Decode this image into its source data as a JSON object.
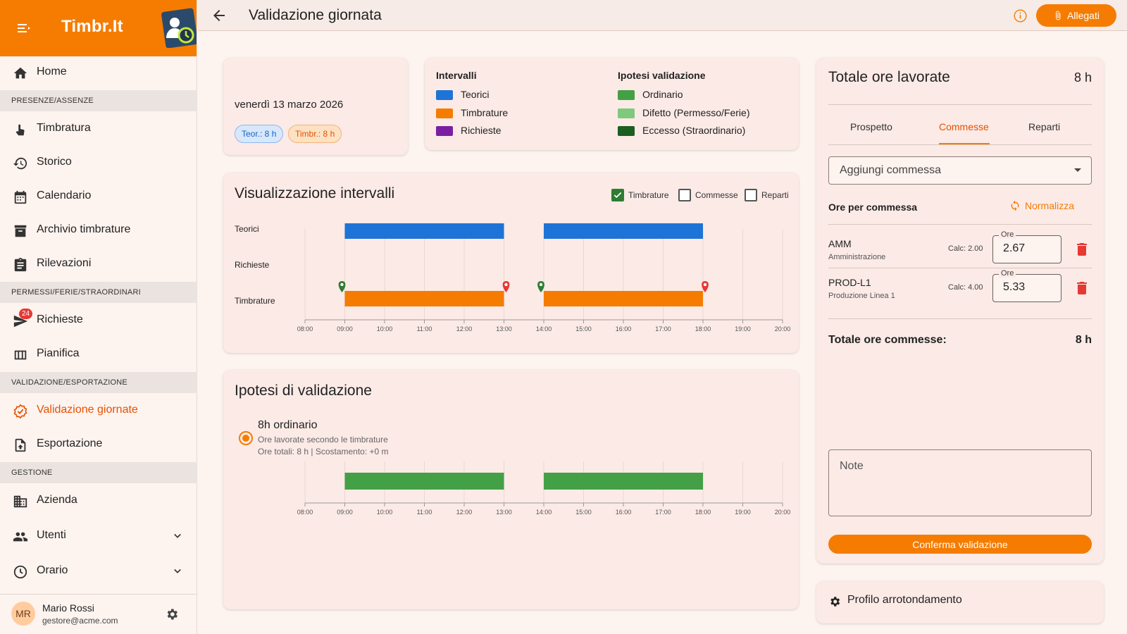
{
  "app": {
    "name": "Timbr.It"
  },
  "sidebar": {
    "home": "Home",
    "sections": [
      "PRESENZE/ASSENZE",
      "PERMESSI/FERIE/STRAORDINARI",
      "VALIDAZIONE/ESPORTAZIONE",
      "GESTIONE"
    ],
    "items": {
      "timbratura": "Timbratura",
      "storico": "Storico",
      "calendario": "Calendario",
      "archivio": "Archivio timbrature",
      "rilevazioni": "Rilevazioni",
      "richieste": "Richieste",
      "richieste_badge": "24",
      "pianifica": "Pianifica",
      "validazione": "Validazione giornate",
      "esportazione": "Esportazione",
      "azienda": "Azienda",
      "utenti": "Utenti",
      "orario": "Orario"
    },
    "user": {
      "initials": "MR",
      "name": "Mario Rossi",
      "email": "gestore@acme.com"
    }
  },
  "topbar": {
    "title": "Validazione giornata",
    "allegati_label": "Allegati"
  },
  "date_card": {
    "date": "venerdì 13 marzo 2026",
    "chip_teorici": "Teor.: 8 h",
    "chip_timbrature": "Timbr.: 8 h"
  },
  "legend": {
    "intervalli_title": "Intervalli",
    "intervalli": [
      {
        "label": "Teorici",
        "color": "#1e74d6"
      },
      {
        "label": "Timbrature",
        "color": "#f57c00"
      },
      {
        "label": "Richieste",
        "color": "#7b1fa2"
      }
    ],
    "ipotesi_title": "Ipotesi validazione",
    "ipotesi": [
      {
        "label": "Ordinario",
        "color": "#43a047"
      },
      {
        "label": "Difetto (Permesso/Ferie)",
        "color": "#7fc97f"
      },
      {
        "label": "Eccesso (Straordinario)",
        "color": "#1b5e20"
      }
    ]
  },
  "visualizzazione": {
    "title": "Visualizzazione intervalli",
    "checkboxes": [
      {
        "label": "Timbrature",
        "checked": true
      },
      {
        "label": "Commesse",
        "checked": false
      },
      {
        "label": "Reparti",
        "checked": false
      }
    ],
    "row_labels": [
      "Teorici",
      "Richieste",
      "Timbrature"
    ]
  },
  "timeline": {
    "ticks": [
      "08:00",
      "09:00",
      "10:00",
      "11:00",
      "12:00",
      "13:00",
      "14:00",
      "15:00",
      "16:00",
      "17:00",
      "18:00",
      "19:00",
      "20:00"
    ],
    "start_hour": 8,
    "end_hour": 20,
    "teorici": [
      [
        9,
        13
      ],
      [
        14,
        18
      ]
    ],
    "richieste": [],
    "timbrature": [
      [
        9,
        13
      ],
      [
        14,
        18
      ]
    ],
    "ordinario": [
      [
        9,
        13
      ],
      [
        14,
        18
      ]
    ]
  },
  "ipotesi_card": {
    "title": "Ipotesi di validazione",
    "option_title": "8h ordinario",
    "option_sub1": "Ore lavorate secondo le timbrature",
    "option_sub2": "Ore totali: 8 h | Scostamento: +0 m"
  },
  "totale": {
    "title": "Totale ore lavorate",
    "value": "8 h",
    "tabs": [
      "Prospetto",
      "Commesse",
      "Reparti"
    ],
    "active_tab": "Commesse",
    "select_placeholder": "Aggiungi commessa",
    "ore_per_commessa": "Ore per commessa",
    "normalizza": "Normalizza",
    "ore_label": "Ore",
    "commesse": [
      {
        "code": "AMM",
        "desc": "Amministrazione",
        "calc": "Calc: 2.00",
        "ore": "2.67"
      },
      {
        "code": "PROD-L1",
        "desc": "Produzione Linea 1",
        "calc": "Calc: 4.00",
        "ore": "5.33"
      }
    ],
    "totale_commesse_label": "Totale ore commesse:",
    "totale_commesse_value": "8 h",
    "note_placeholder": "Note",
    "confirm_label": "Conferma validazione"
  },
  "profilo": {
    "title": "Profilo arrotondamento"
  }
}
